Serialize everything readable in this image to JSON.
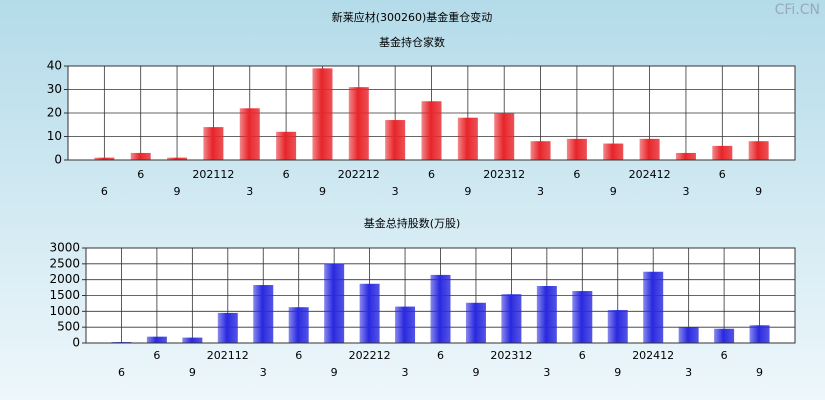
{
  "title": "新莱应材(300260)基金重仓变动",
  "watermark": "CFi.CN",
  "chart_data": [
    {
      "type": "bar",
      "title": "基金持仓家数",
      "categories": [
        "6",
        "6",
        "9",
        "202112",
        "3",
        "6",
        "9",
        "202212",
        "3",
        "6",
        "9",
        "202312",
        "3",
        "6",
        "9",
        "202412",
        "3",
        "6",
        "9"
      ],
      "values": [
        1,
        3,
        1,
        14,
        22,
        12,
        39,
        31,
        17,
        25,
        18,
        20,
        8,
        9,
        7,
        9,
        3,
        6,
        8
      ],
      "color": "#e8262b",
      "ylim": [
        0,
        40
      ],
      "yticks": [
        0,
        10,
        20,
        30,
        40
      ],
      "grid": true
    },
    {
      "type": "bar",
      "title": "基金总持股数(万股)",
      "categories": [
        "6",
        "6",
        "9",
        "202112",
        "3",
        "6",
        "9",
        "202212",
        "3",
        "6",
        "9",
        "202312",
        "3",
        "6",
        "9",
        "202412",
        "3",
        "6",
        "9"
      ],
      "values": [
        30,
        200,
        170,
        950,
        1830,
        1130,
        2500,
        1870,
        1150,
        2150,
        1270,
        1540,
        1800,
        1640,
        1040,
        2250,
        490,
        450,
        560
      ],
      "color": "#2a2ae0",
      "ylim": [
        0,
        3000
      ],
      "yticks": [
        0,
        500,
        1000,
        1500,
        2000,
        2500,
        3000
      ],
      "grid": true
    }
  ]
}
